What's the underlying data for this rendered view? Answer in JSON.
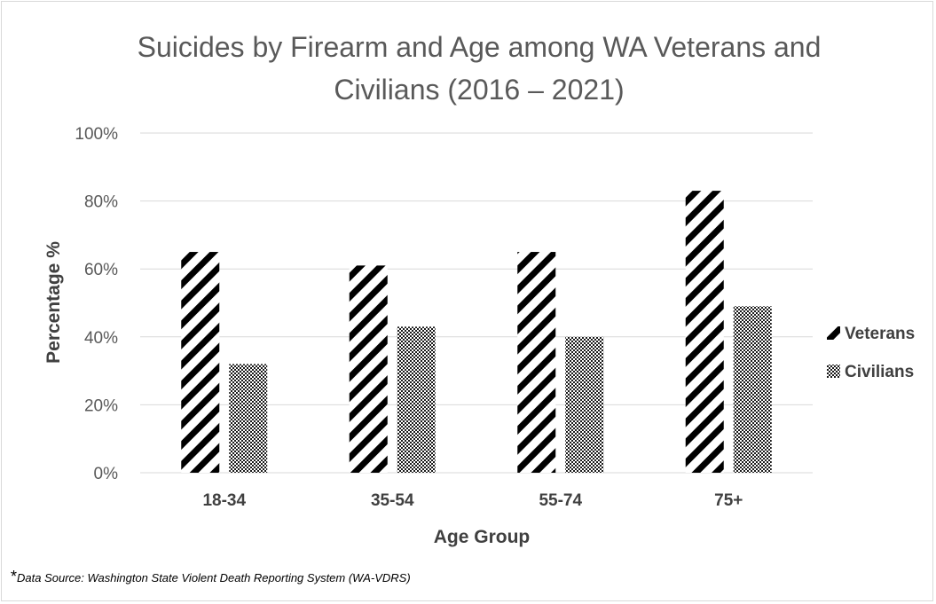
{
  "chart_data": {
    "type": "bar",
    "title": [
      "Suicides by Firearm and Age among WA Veterans and",
      "Civilians (2016 – 2021)"
    ],
    "xlabel": "Age Group",
    "ylabel": "Percentage %",
    "categories": [
      "18-34",
      "35-54",
      "55-74",
      "75+"
    ],
    "series": [
      {
        "name": "Veterans",
        "values": [
          65,
          61,
          65,
          83
        ],
        "pattern": "diagonal-stripes"
      },
      {
        "name": "Civilians",
        "values": [
          32,
          43,
          40,
          49
        ],
        "pattern": "checkerboard"
      }
    ],
    "ylim": [
      0,
      100
    ],
    "yticks": [
      0,
      20,
      40,
      60,
      80,
      100
    ],
    "ytick_labels": [
      "0%",
      "20%",
      "40%",
      "60%",
      "80%",
      "100%"
    ],
    "grid": true,
    "legend": "right"
  },
  "footnote": {
    "star": "*",
    "text": "Data Source: Washington State Violent Death Reporting System (WA-VDRS)"
  },
  "colors": {
    "bar_fill": "#000000",
    "gridline": "#d9d9d9",
    "title_text": "#595959",
    "label_text": "#404040"
  }
}
